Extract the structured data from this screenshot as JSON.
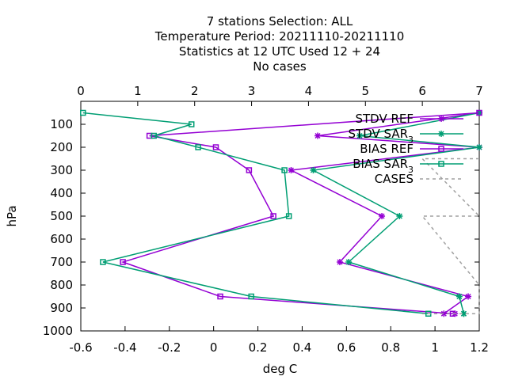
{
  "chart_data": {
    "type": "line",
    "title_lines": [
      "7 stations Selection: ALL",
      "Temperature  Period: 20211110-20211110",
      "Statistics at 12 UTC  Used  12 + 24",
      "No cases"
    ],
    "xlabel": "deg C",
    "ylabel": "hPa",
    "x2label": "",
    "xlim": [
      -0.6,
      1.2
    ],
    "x2lim": [
      0,
      7
    ],
    "ylim": [
      1000,
      0
    ],
    "xticks": [
      "-0.6",
      "-0.4",
      "-0.2",
      "0",
      "0.2",
      "0.4",
      "0.6",
      "0.8",
      "1",
      "1.2"
    ],
    "xtick_values": [
      -0.6,
      -0.4,
      -0.2,
      0,
      0.2,
      0.4,
      0.6,
      0.8,
      1.0,
      1.2
    ],
    "x2ticks": [
      "0",
      "1",
      "2",
      "3",
      "4",
      "5",
      "6",
      "7"
    ],
    "x2tick_values": [
      0,
      1,
      2,
      3,
      4,
      5,
      6,
      7
    ],
    "yticks": [
      "100",
      "200",
      "300",
      "400",
      "500",
      "600",
      "700",
      "800",
      "900",
      "1000"
    ],
    "ytick_values": [
      100,
      200,
      300,
      400,
      500,
      600,
      700,
      800,
      900,
      1000
    ],
    "legend_position": "top-right",
    "series": [
      {
        "name": "STDV REF",
        "subscript": "",
        "color": "#9400d3",
        "marker": "star",
        "dash": "",
        "axis": "x",
        "x": [
          1.2,
          0.47,
          1.2,
          0.35,
          0.76,
          0.57,
          1.15,
          1.04,
          1.09
        ],
        "y": [
          50,
          150,
          200,
          300,
          500,
          700,
          850,
          925,
          925
        ]
      },
      {
        "name": "STDV SAR",
        "subscript": "3",
        "color": "#009e73",
        "marker": "star",
        "dash": "",
        "axis": "x",
        "x": [
          1.2,
          0.66,
          1.2,
          0.45,
          0.84,
          0.61,
          1.11,
          1.13,
          1.13
        ],
        "y": [
          50,
          150,
          200,
          300,
          500,
          700,
          850,
          925,
          925
        ]
      },
      {
        "name": "BIAS REF",
        "subscript": "",
        "color": "#9400d3",
        "marker": "square",
        "dash": "",
        "axis": "x",
        "x": [
          1.2,
          -0.29,
          0.01,
          0.16,
          0.27,
          -0.41,
          0.03,
          1.08
        ],
        "y": [
          50,
          150,
          200,
          300,
          500,
          700,
          850,
          925
        ]
      },
      {
        "name": "BIAS SAR",
        "subscript": "3",
        "color": "#009e73",
        "marker": "square",
        "dash": "",
        "axis": "x",
        "x": [
          -0.59,
          -0.1,
          -0.27,
          -0.07,
          0.32,
          0.34,
          -0.5,
          0.17,
          0.97
        ],
        "y": [
          50,
          100,
          150,
          200,
          300,
          500,
          700,
          850,
          925
        ]
      },
      {
        "name": "CASES",
        "subscript": "",
        "color": "#a0a0a0",
        "marker": "none",
        "dash": "4,4",
        "axis": "x2",
        "x": [
          7,
          6,
          7,
          7,
          6,
          7,
          7,
          7,
          6
        ],
        "y": [
          250,
          250,
          500,
          500,
          500,
          800,
          800,
          925,
          925
        ]
      }
    ]
  }
}
